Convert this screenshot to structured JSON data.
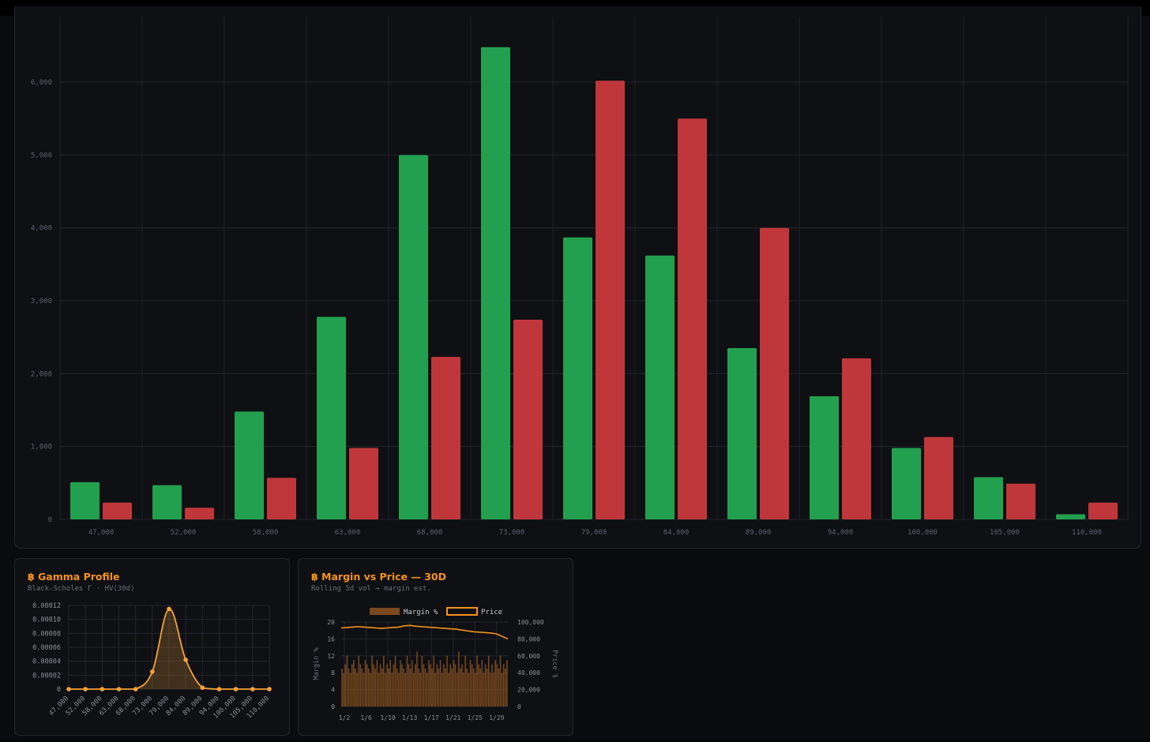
{
  "chart_data": [
    {
      "type": "bar",
      "categories": [
        "47,000",
        "52,000",
        "58,000",
        "63,000",
        "68,000",
        "73,000",
        "79,000",
        "84,000",
        "89,000",
        "94,000",
        "100,000",
        "105,000",
        "110,000"
      ],
      "series": [
        {
          "color": "#22a04f",
          "values": [
            510,
            470,
            1480,
            2780,
            5000,
            6480,
            3870,
            3620,
            2350,
            1690,
            980,
            580,
            70
          ]
        },
        {
          "color": "#c0373b",
          "values": [
            230,
            160,
            570,
            980,
            2230,
            2740,
            6020,
            5500,
            4000,
            2210,
            1130,
            490,
            230
          ]
        }
      ],
      "yticks": [
        "0",
        "1,000",
        "2,000",
        "3,000",
        "4,000",
        "5,000",
        "6,000"
      ],
      "ylim": [
        0,
        6900
      ],
      "grid": true
    },
    {
      "type": "area",
      "title": "฿ Gamma Profile",
      "subtitle": "Black-Scholes Γ · HV(30d)",
      "categories": [
        "47,000",
        "52,000",
        "58,000",
        "63,000",
        "68,000",
        "73,000",
        "79,000",
        "84,000",
        "89,000",
        "94,000",
        "100,000",
        "105,000",
        "110,000"
      ],
      "values": [
        0,
        0,
        0,
        0,
        0,
        2.5e-05,
        0.000115,
        4.2e-05,
        2e-06,
        0,
        0,
        0,
        0
      ],
      "yticks": [
        "0",
        "0.00002",
        "0.00004",
        "0.00006",
        "0.00008",
        "0.00010",
        "0.00012"
      ],
      "ylim": [
        0,
        0.00012
      ],
      "color": "#f7a23a",
      "grid": true
    },
    {
      "type": "bar",
      "title": "฿ Margin vs Price — 30D",
      "subtitle": "Rolling 5d vol → margin est.",
      "legend": [
        "Margin %",
        "Price"
      ],
      "ylabel_left": "Margin %",
      "ylabel_right": "Price $",
      "yticks_left": [
        "0",
        "4",
        "8",
        "12",
        "16",
        "20"
      ],
      "yticks_right": [
        "0",
        "20,000",
        "40,000",
        "60,000",
        "80,000",
        "100,000"
      ],
      "xticks": [
        "1/2",
        "1/6",
        "1/10",
        "1/13",
        "1/17",
        "1/21",
        "1/25",
        "1/29"
      ],
      "ylim_left": [
        0,
        20
      ],
      "ylim_right": [
        0,
        100000
      ],
      "margin_values": [
        9,
        8,
        10,
        12,
        9,
        8,
        10,
        11,
        9,
        8,
        12,
        10,
        9,
        8,
        11,
        10,
        9,
        8,
        12,
        10,
        9,
        11,
        8,
        10,
        9,
        12,
        8,
        10,
        9,
        11,
        8,
        10,
        12,
        9,
        8,
        11,
        10,
        9,
        8,
        12,
        10,
        9,
        11,
        8,
        10,
        13,
        9,
        8,
        12,
        10,
        9,
        8,
        11,
        10,
        9,
        12,
        8,
        10,
        9,
        11,
        8,
        10,
        9,
        12,
        8,
        10,
        9,
        11,
        10,
        8,
        13,
        9,
        10,
        8,
        12,
        9,
        8,
        11,
        10,
        9,
        8,
        12,
        10,
        9,
        11,
        8,
        10,
        9,
        12,
        8,
        10,
        8,
        11,
        10,
        9,
        12,
        8,
        10,
        9,
        11
      ],
      "price_values": [
        93000,
        93500,
        94000,
        94500,
        94000,
        93500,
        93000,
        92500,
        93000,
        93500,
        94000,
        95500,
        96000,
        95000,
        94500,
        94000,
        93500,
        93000,
        92500,
        92000,
        91500,
        90500,
        89500,
        88500,
        88000,
        87500,
        87000,
        86000,
        83000,
        80000
      ]
    }
  ]
}
